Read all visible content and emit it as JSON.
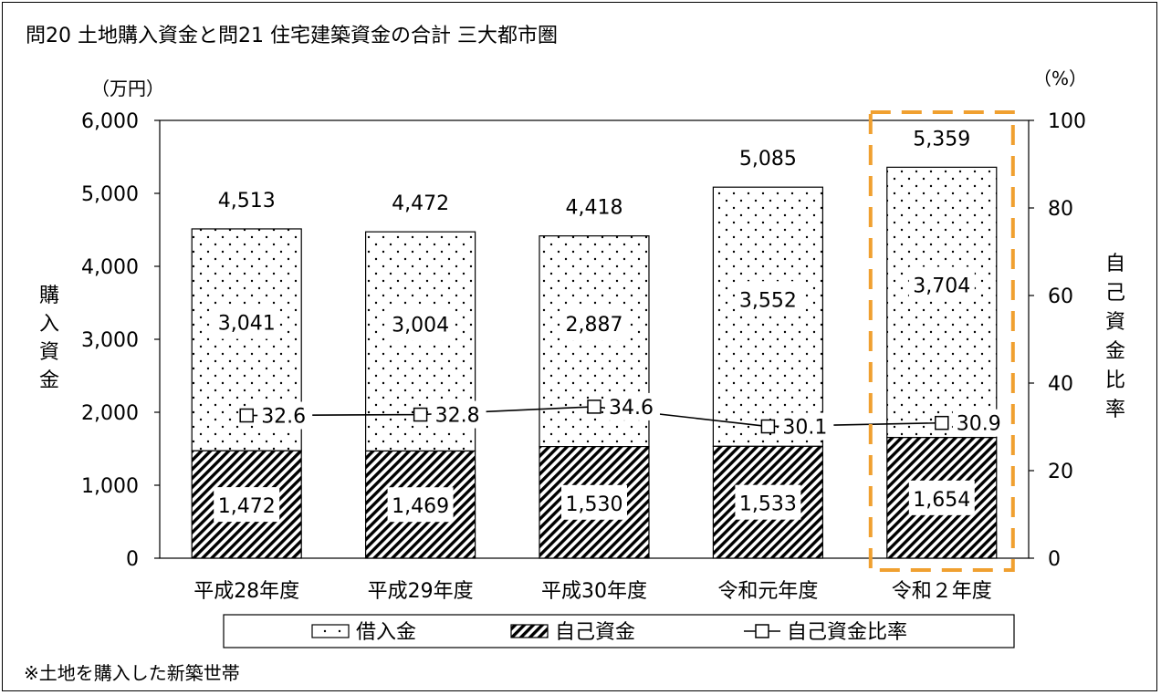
{
  "chart_data": {
    "type": "bar",
    "title": "問20 土地購入資金と問21 住宅建築資金の合計 三大都市圏",
    "left_unit": "（万円）",
    "right_unit": "（%）",
    "ylabel": "購入資金",
    "y2label": "自己資金比率",
    "ylim": [
      0,
      6000
    ],
    "y2lim": [
      0,
      100
    ],
    "yticks": [
      "0",
      "1,000",
      "2,000",
      "3,000",
      "4,000",
      "5,000",
      "6,000"
    ],
    "y2ticks": [
      "0",
      "20",
      "40",
      "60",
      "80",
      "100"
    ],
    "categories": [
      "平成28年度",
      "平成29年度",
      "平成30年度",
      "令和元年度",
      "令和２年度"
    ],
    "totals": [
      4513,
      4472,
      4418,
      5085,
      5359
    ],
    "totals_labels": [
      "4,513",
      "4,472",
      "4,418",
      "5,085",
      "5,359"
    ],
    "series": [
      {
        "name": "自己資金",
        "values": [
          1472,
          1469,
          1530,
          1533,
          1654
        ],
        "labels": [
          "1,472",
          "1,469",
          "1,530",
          "1,533",
          "1,654"
        ]
      },
      {
        "name": "借入金",
        "values": [
          3041,
          3004,
          2887,
          3552,
          3704
        ],
        "labels": [
          "3,041",
          "3,004",
          "2,887",
          "3,552",
          "3,704"
        ]
      },
      {
        "name": "自己資金比率",
        "axis": "right",
        "type": "line",
        "values": [
          32.6,
          32.8,
          34.6,
          30.1,
          30.9
        ],
        "labels": [
          "32.6",
          "32.8",
          "34.6",
          "30.1",
          "30.9"
        ]
      }
    ],
    "legend": [
      "借入金",
      "自己資金",
      "自己資金比率"
    ],
    "legend_position": "bottom",
    "highlight_category": "令和２年度",
    "highlight_color": "#F0A030",
    "footnote": "※土地を購入した新築世帯",
    "grid": false
  }
}
